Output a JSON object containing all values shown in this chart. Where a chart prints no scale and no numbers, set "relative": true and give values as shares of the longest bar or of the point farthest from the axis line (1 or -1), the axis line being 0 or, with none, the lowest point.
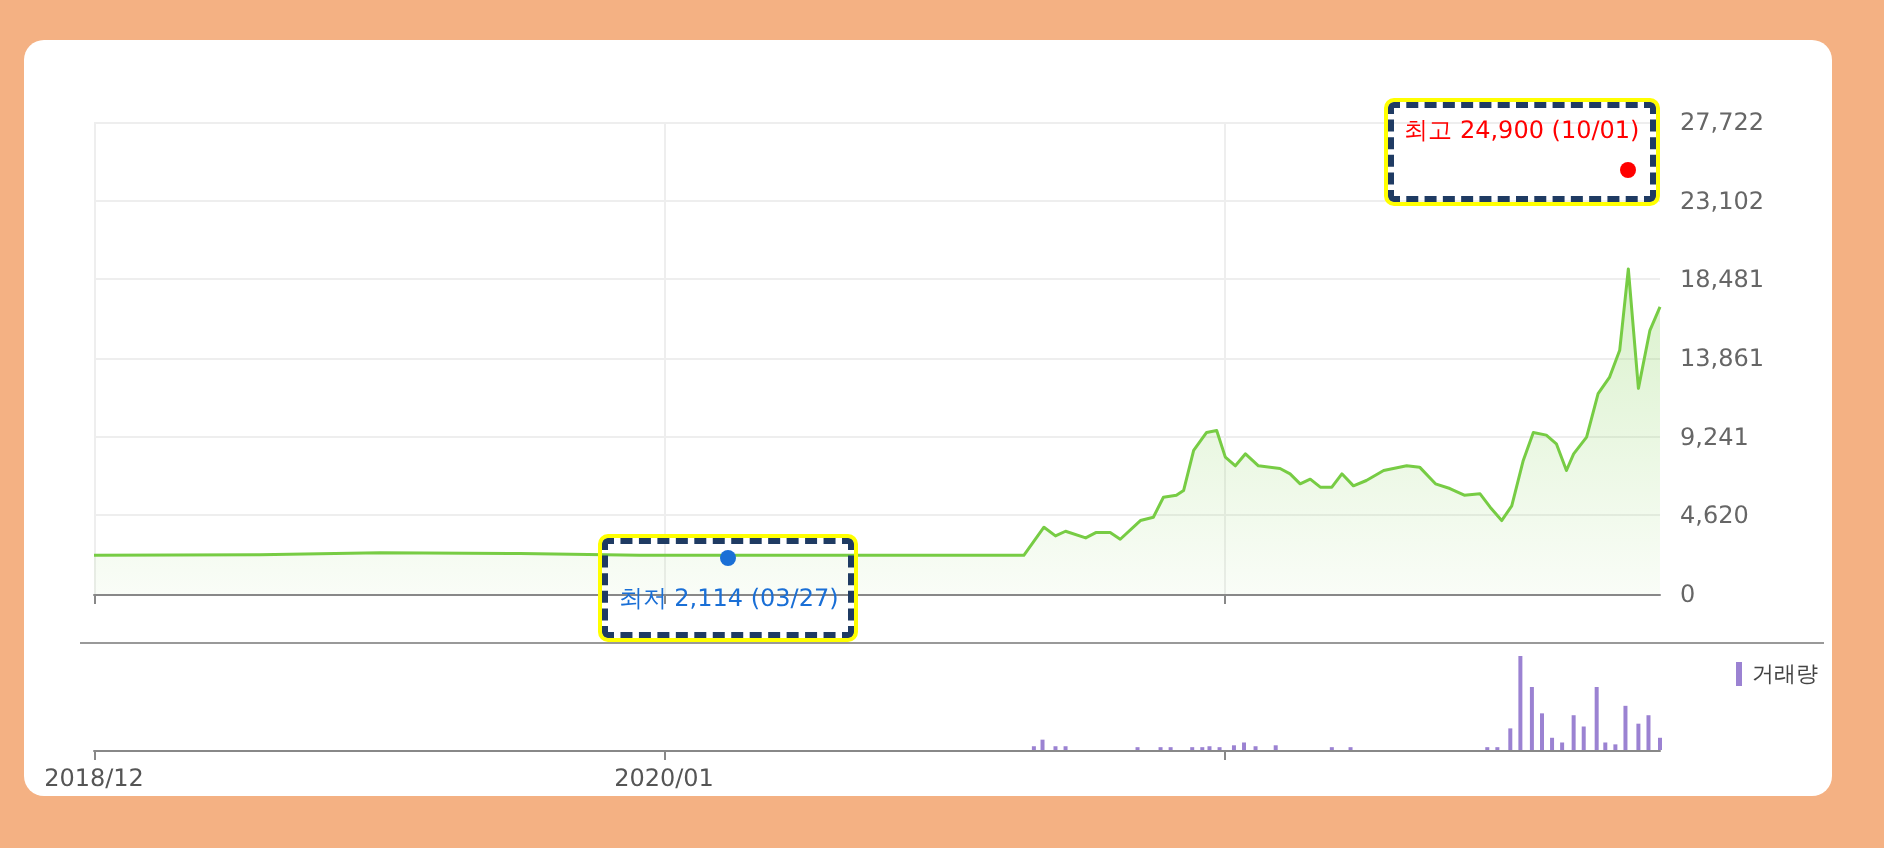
{
  "chart_data": [
    {
      "type": "area",
      "x": [
        "2018-12-01",
        "2019-03-26",
        "2019-06-18",
        "2019-09-23",
        "2019-12-15",
        "2020-09-07",
        "2020-09-21",
        "2020-09-29",
        "2020-10-06",
        "2020-10-20",
        "2020-10-27",
        "2020-11-06",
        "2020-11-13",
        "2020-11-27",
        "2020-12-06",
        "2020-12-13",
        "2020-12-22",
        "2020-12-27",
        "2021-01-03",
        "2021-01-12",
        "2021-01-19",
        "2021-01-25",
        "2021-02-01",
        "2021-02-08",
        "2021-02-17",
        "2021-03-04",
        "2021-03-11",
        "2021-03-18",
        "2021-03-25",
        "2021-04-01",
        "2021-04-09",
        "2021-04-16",
        "2021-04-24",
        "2021-05-03",
        "2021-05-15",
        "2021-05-31",
        "2021-06-09",
        "2021-06-20",
        "2021-06-30",
        "2021-07-10",
        "2021-07-21",
        "2021-07-28",
        "2021-08-05",
        "2021-08-12",
        "2021-08-20",
        "2021-08-27",
        "2021-09-05",
        "2021-09-12",
        "2021-09-19",
        "2021-09-24",
        "2021-10-03",
        "2021-10-11",
        "2021-10-19",
        "2021-10-26",
        "2021-11-01",
        "2021-11-08",
        "2021-11-16",
        "2021-11-23"
      ],
      "series": [
        {
          "color": "#77cc44",
          "values": [
            2274,
            2300,
            2430,
            2380,
            2274,
            2274,
            3921,
            3411,
            3686,
            3294,
            3607,
            3607,
            3215,
            4313,
            4509,
            5685,
            5803,
            6078,
            8430,
            9489,
            9606,
            8038,
            7528,
            8234,
            7528,
            7372,
            7058,
            6470,
            6744,
            6274,
            6274,
            7058,
            6352,
            6666,
            7254,
            7528,
            7450,
            6470,
            6195,
            5803,
            5882,
            5097,
            4313,
            5176,
            7842,
            9489,
            9332,
            8822,
            7254,
            8234,
            9215,
            11763,
            12743,
            14312,
            19095,
            12077,
            15488,
            16860
          ]
        }
      ],
      "xlim": [
        "2018-12-01",
        "2021-11-23"
      ],
      "xticks": [
        {
          "value": "2018-12-01",
          "label": null
        },
        {
          "value": "2020-01-01",
          "label": null
        },
        {
          "value": "2021-01-24",
          "label": null
        }
      ],
      "ylim": [
        0,
        27722
      ],
      "yticks": [
        {
          "value": 0,
          "label": "0"
        },
        {
          "value": 4620,
          "label": "4,620"
        },
        {
          "value": 9241,
          "label": "9,241"
        },
        {
          "value": 13861,
          "label": "13,861"
        },
        {
          "value": 18481,
          "label": "18,481"
        },
        {
          "value": 23102,
          "label": "23,102"
        },
        {
          "value": 27722,
          "label": "27,722"
        }
      ],
      "grid": true,
      "tick_labels": "y",
      "annotations": [
        {
          "text": "최고 24,900 (10/01)",
          "x": "2021-11-01",
          "y": 24900
        },
        {
          "text": "최저 2,114 (03/27)",
          "x": "2020-02-15",
          "y": 2114
        }
      ]
    },
    {
      "type": "bar",
      "relative": true,
      "x": [
        "2020-09-14",
        "2020-09-20",
        "2020-09-29",
        "2020-10-06",
        "2020-11-25",
        "2020-12-11",
        "2020-12-18",
        "2021-01-02",
        "2021-01-09",
        "2021-01-14",
        "2021-01-21",
        "2021-01-31",
        "2021-02-07",
        "2021-02-15",
        "2021-03-01",
        "2021-04-09",
        "2021-04-22",
        "2021-07-26",
        "2021-08-02",
        "2021-08-11",
        "2021-08-18",
        "2021-08-26",
        "2021-09-02",
        "2021-09-09",
        "2021-09-16",
        "2021-09-24",
        "2021-10-01",
        "2021-10-10",
        "2021-10-16",
        "2021-10-23",
        "2021-10-30",
        "2021-11-08",
        "2021-11-15",
        "2021-11-23"
      ],
      "series": [
        {
          "name": "거래량",
          "color": "#9b82d2",
          "values": [
            0.04,
            0.11,
            0.04,
            0.04,
            0.03,
            0.03,
            0.03,
            0.03,
            0.03,
            0.04,
            0.03,
            0.05,
            0.08,
            0.04,
            0.05,
            0.03,
            0.03,
            0.03,
            0.03,
            0.23,
            1,
            0.67,
            0.39,
            0.13,
            0.08,
            0.37,
            0.25,
            0.67,
            0.08,
            0.06,
            0.47,
            0.28,
            0.37,
            0.13
          ]
        }
      ],
      "xlim": [
        "2018-12-01",
        "2021-11-23"
      ],
      "xticks": [
        {
          "value": "2018-12-01",
          "label": "2018/12"
        },
        {
          "value": "2020-01-01",
          "label": "2020/01"
        },
        {
          "value": "2021-01-24",
          "label": null
        }
      ],
      "tick_labels": "x",
      "legend": "top right"
    }
  ]
}
